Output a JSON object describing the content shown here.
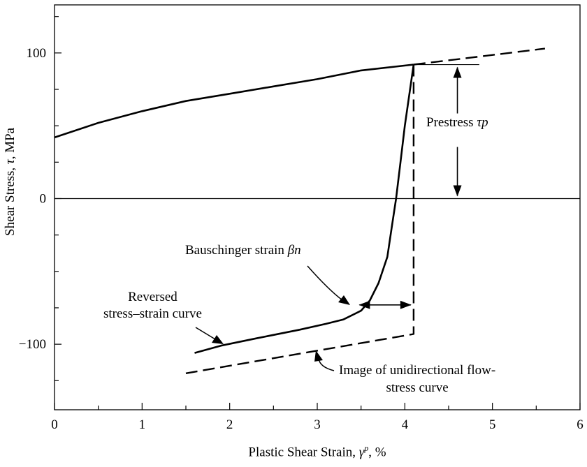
{
  "chart_data": {
    "type": "line",
    "xlabel_prefix": "Plastic Shear Strain,",
    "xlabel_symbol": "γ",
    "xlabel_sup": "p",
    "xlabel_suffix": ", %",
    "ylabel_prefix": "Shear Stress,",
    "ylabel_symbol": "τ",
    "ylabel_suffix": ", MPa",
    "xlim": [
      0,
      6
    ],
    "ylim": [
      -145,
      133
    ],
    "x_ticks": [
      0,
      1,
      2,
      3,
      4,
      5,
      6
    ],
    "y_ticks": [
      100,
      0,
      -100
    ],
    "grid": false,
    "series": [
      {
        "style": "solid",
        "x": [
          0,
          0.5,
          1,
          1.5,
          2,
          2.5,
          3,
          3.5,
          4.1
        ],
        "y": [
          42,
          52,
          60,
          67,
          72,
          77,
          82,
          88,
          92
        ]
      },
      {
        "style": "dashed",
        "x": [
          4.1,
          5.6
        ],
        "y": [
          92,
          103
        ]
      },
      {
        "style": "solid",
        "x": [
          4.1,
          4.0,
          3.95,
          3.9,
          3.85,
          3.8,
          3.7,
          3.6,
          3.5,
          3.3,
          3.1,
          2.8,
          2.3,
          1.9,
          1.6
        ],
        "y": [
          92,
          50,
          25,
          0,
          -20,
          -40,
          -58,
          -70,
          -77,
          -83,
          -86,
          -90,
          -96,
          -101,
          -106
        ]
      },
      {
        "style": "dashed",
        "x": [
          4.1,
          4.1,
          1.5
        ],
        "y": [
          92,
          -93,
          -120
        ]
      }
    ],
    "reference_line_y": 0,
    "prestress_line": {
      "x": [
        4.1,
        4.85
      ],
      "y": 92
    },
    "prestress_arrow": {
      "x": 4.6,
      "y_from": 92,
      "y_to": 0
    },
    "bauschinger_arrow": {
      "y": -73,
      "x_from": 3.45,
      "x_to": 4.1
    },
    "annotations": {
      "prestress_text": "Prestress",
      "prestress_symbol": "τp",
      "bauschinger_text": "Bauschinger strain",
      "bauschinger_symbol": "βn",
      "reversed_line1": "Reversed",
      "reversed_line2": "stress–strain curve",
      "image_line1": "Image of unidirectional flow-",
      "image_line2": "stress curve"
    }
  }
}
